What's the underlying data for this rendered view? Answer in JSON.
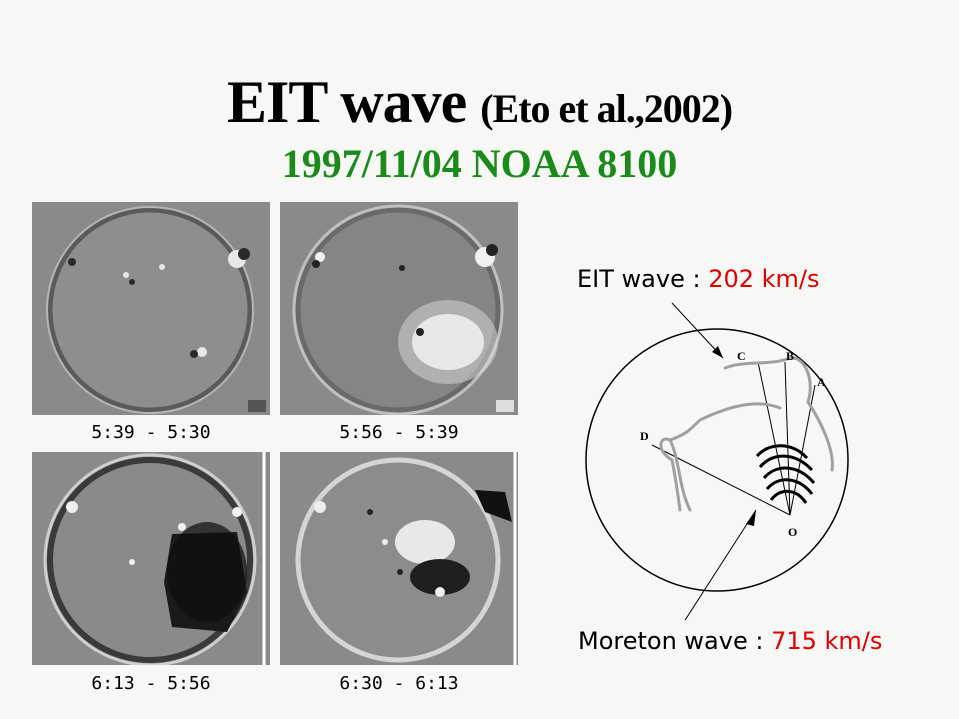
{
  "title": {
    "main": "EIT wave",
    "citation": "(Eto et al.,2002)"
  },
  "subtitle": "1997/11/04 NOAA 8100",
  "colors": {
    "subtitle": "#1a8a1a",
    "speed": "#e00000"
  },
  "panels": [
    {
      "caption": "5:39 - 5:30"
    },
    {
      "caption": "5:56 - 5:39"
    },
    {
      "caption": "6:13 - 5:56"
    },
    {
      "caption": "6:30 - 6:13"
    }
  ],
  "diagram": {
    "eit_label": "EIT wave :",
    "eit_speed": "202 km/s",
    "moreton_label": "Moreton wave :",
    "moreton_speed": "715 km/s",
    "points": {
      "a": "A",
      "b": "B",
      "c": "C",
      "d": "D",
      "o": "O"
    }
  }
}
